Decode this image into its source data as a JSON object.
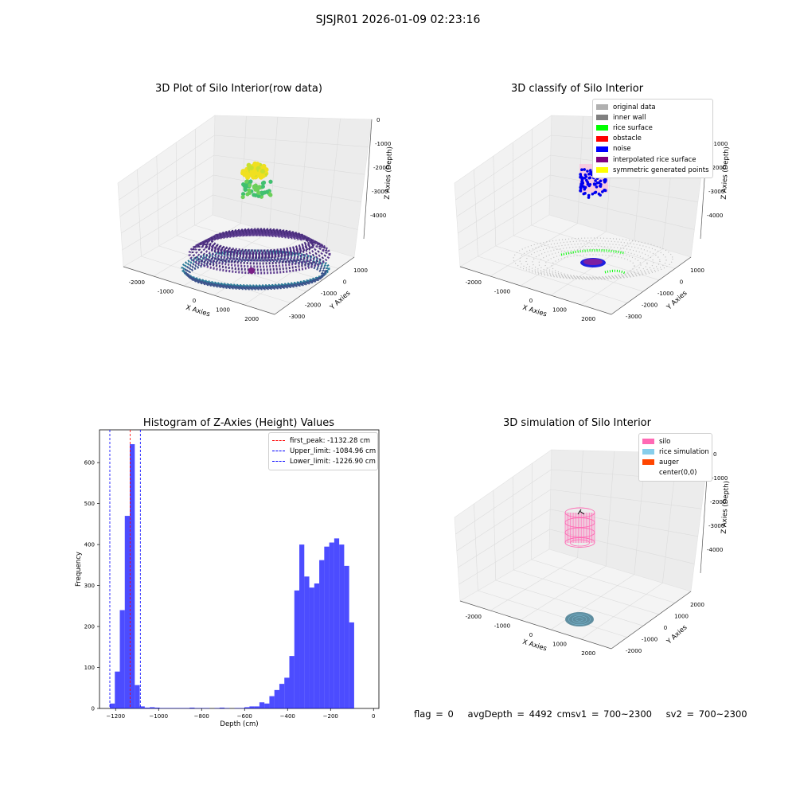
{
  "suptitle": "SJSJR01 2026-01-09 02:23:16",
  "colors": {
    "original": "#b0b0b0",
    "inner_wall": "#808080",
    "rice_surface": "#00ff00",
    "obstacle": "#ff0000",
    "noise": "#0000ff",
    "interpolated": "#800080",
    "symmetric": "#ffff00",
    "silo": "#ff69b4",
    "rice_sim": "#87ceeb",
    "auger": "#ff4500",
    "hist_bar": "#0000ff"
  },
  "panel1": {
    "title": "3D Plot of Silo Interior(row data)",
    "xlabel": "X Axies",
    "ylabel": "Y Axies",
    "zlabel": "Z Axies (Depth)",
    "xticks": [
      "-2000",
      "-1000",
      "0",
      "1000",
      "2000"
    ],
    "yticks": [
      "1000",
      "0",
      "-1000",
      "-2000",
      "-3000"
    ],
    "zticks": [
      "0",
      "-1000",
      "-2000",
      "-3000",
      "-4000"
    ]
  },
  "panel2": {
    "title": "3D classify of Silo Interior",
    "xlabel": "X Axies",
    "ylabel": "Y Axies",
    "zlabel": "Z Axies (Depth)",
    "xticks": [
      "-2000",
      "-1000",
      "0",
      "1000",
      "2000"
    ],
    "yticks": [
      "1000",
      "0",
      "-1000",
      "-2000",
      "-3000"
    ],
    "zticks": [
      "-1000",
      "-2000",
      "-3000",
      "-4000"
    ],
    "legend": [
      {
        "label": "original data",
        "color": "#b0b0b0"
      },
      {
        "label": "inner wall",
        "color": "#808080"
      },
      {
        "label": "rice surface",
        "color": "#00ff00"
      },
      {
        "label": "obstacle",
        "color": "#ff0000"
      },
      {
        "label": "noise",
        "color": "#0000ff"
      },
      {
        "label": "interpolated rice surface",
        "color": "#800080"
      },
      {
        "label": "symmetric generated points",
        "color": "#ffff00"
      }
    ]
  },
  "panel4": {
    "title": "3D simulation of Silo Interior",
    "xlabel": "X Axies",
    "ylabel": "Y Axies",
    "zlabel": "Z Axies (Depth)",
    "xticks": [
      "-2000",
      "-1000",
      "0",
      "1000",
      "2000"
    ],
    "yticks": [
      "2000",
      "1000",
      "0",
      "-1000",
      "-2000"
    ],
    "zticks": [
      "0",
      "-1000",
      "-2000",
      "-3000",
      "-4000"
    ],
    "legend": [
      {
        "label": "silo",
        "color": "#ff69b4"
      },
      {
        "label": "rice simulation",
        "color": "#87ceeb"
      },
      {
        "label": "auger",
        "color": "#ff4500"
      },
      {
        "label": "center(0,0)",
        "color": ""
      }
    ]
  },
  "status": {
    "flag": "flag = 0",
    "avg": "avgDepth = 4492 cmsv1 = 700~2300",
    "sv2": "sv2 = 700~2300"
  },
  "chart_data": {
    "type": "bar",
    "title": "Histogram of Z-Axies (Height) Values",
    "xlabel": "Depth (cm)",
    "ylabel": "Frequency",
    "xlim": [
      -1275,
      25
    ],
    "ylim": [
      0,
      680
    ],
    "xticks": [
      -1200,
      -1000,
      -800,
      -600,
      -400,
      -200,
      0
    ],
    "yticks": [
      0,
      100,
      200,
      300,
      400,
      500,
      600
    ],
    "bin_width": 23.2,
    "bin_start": -1226.9,
    "values": [
      12,
      90,
      240,
      470,
      645,
      57,
      5,
      2,
      3,
      2,
      1,
      1,
      1,
      1,
      1,
      1,
      2,
      1,
      1,
      1,
      0,
      1,
      2,
      1,
      0,
      1,
      1,
      3,
      5,
      5,
      15,
      12,
      30,
      45,
      60,
      75,
      128,
      288,
      400,
      322,
      295,
      305,
      362,
      395,
      405,
      415,
      400,
      348,
      210
    ],
    "vlines": [
      {
        "label": "first_peak: -1132.28 cm",
        "x": -1132.28,
        "color": "#ff0000"
      },
      {
        "label": "Upper_limit: -1084.96 cm",
        "x": -1084.96,
        "color": "#0000ff"
      },
      {
        "label": "Lower_limit: -1226.90 cm",
        "x": -1226.9,
        "color": "#0000ff"
      }
    ]
  }
}
